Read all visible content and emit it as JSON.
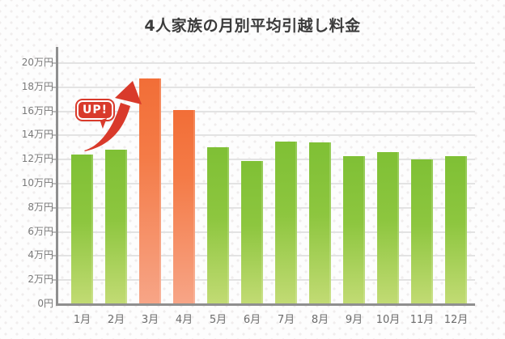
{
  "page": {
    "background": "#fdfdfd"
  },
  "chart_data": {
    "type": "bar",
    "title": "4人家族の月別平均引越し料金",
    "categories": [
      "1月",
      "2月",
      "3月",
      "4月",
      "5月",
      "6月",
      "7月",
      "8月",
      "9月",
      "10月",
      "11月",
      "12月"
    ],
    "values": [
      12.4,
      12.8,
      18.7,
      16.1,
      13.0,
      11.9,
      13.5,
      13.4,
      12.3,
      12.6,
      12.0,
      12.3
    ],
    "value_unit": "万円",
    "ylim": [
      0,
      20
    ],
    "ytick_step": 2,
    "y_tick_labels": [
      "0円",
      "2万円",
      "4万円",
      "6万円",
      "8万円",
      "10万円",
      "12万円",
      "14万円",
      "16万円",
      "18万円",
      "20万円"
    ],
    "grid": true,
    "legend": "none",
    "highlight_indices": [
      2,
      3
    ],
    "colors": {
      "bar_green_top": "#7fc035",
      "bar_green_mid": "#8dc63f",
      "bar_green_bottom": "#c2db74",
      "bar_orange_top": "#f26e37",
      "bar_orange_mid": "#f47b47",
      "bar_orange_bottom": "#f7a587",
      "accent_red": "#d93a2b",
      "axis_gray": "#8f8f8f",
      "grid_gray": "#e3e3e3",
      "title_text": "#3b3b3b",
      "label_text": "#6b6b6b"
    },
    "annotation": {
      "badge_label": "UP!",
      "arrow_icon": "curved-up-right-arrow",
      "arrow_target_category": "3月"
    }
  }
}
